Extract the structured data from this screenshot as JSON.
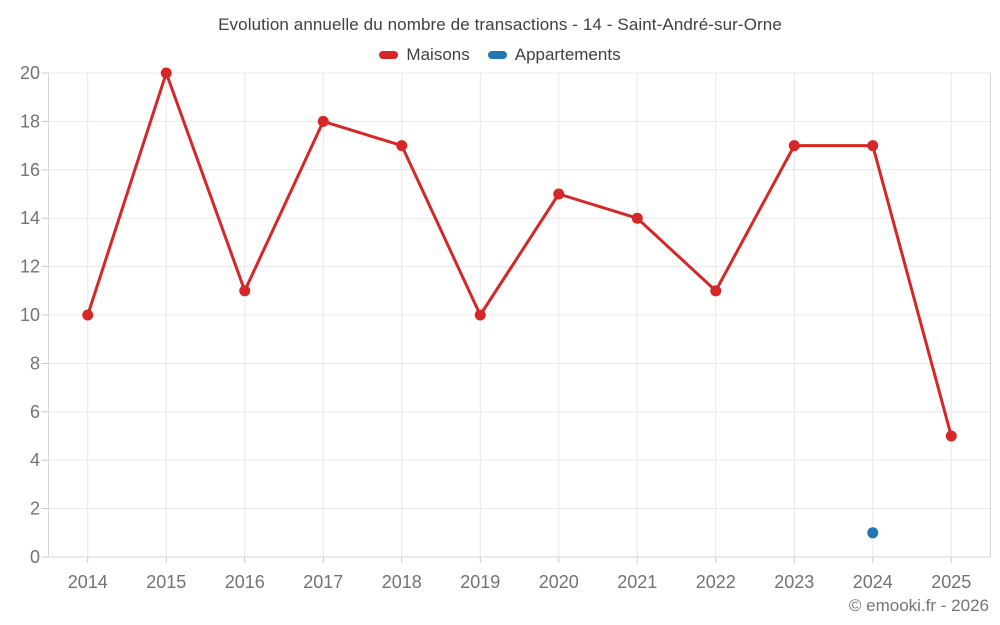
{
  "chart_data": {
    "type": "line",
    "title": "Evolution annuelle du nombre de transactions - 14 - Saint-André-sur-Orne",
    "categories": [
      "2014",
      "2015",
      "2016",
      "2017",
      "2018",
      "2019",
      "2020",
      "2021",
      "2022",
      "2023",
      "2024",
      "2025"
    ],
    "series": [
      {
        "name": "Maisons",
        "color": "#d62728",
        "values": [
          10,
          20,
          11,
          18,
          17,
          10,
          15,
          14,
          11,
          17,
          17,
          5
        ]
      },
      {
        "name": "Appartements",
        "color": "#1f77b4",
        "values": [
          null,
          null,
          null,
          null,
          null,
          null,
          null,
          null,
          null,
          null,
          1,
          null
        ]
      }
    ],
    "xlabel": "",
    "ylabel": "",
    "ylim": [
      0,
      20
    ],
    "ytick_step": 2,
    "grid": true,
    "legend_position": "top"
  },
  "footer": {
    "copyright": "© emooki.fr - 2026"
  },
  "colors": {
    "background": "#ffffff",
    "grid": "#e8e8e8",
    "axis_border": "#d6d6d6",
    "tick": "#c9c9c9",
    "axis_label": "#6f7478",
    "title_text": "#3d4045"
  }
}
